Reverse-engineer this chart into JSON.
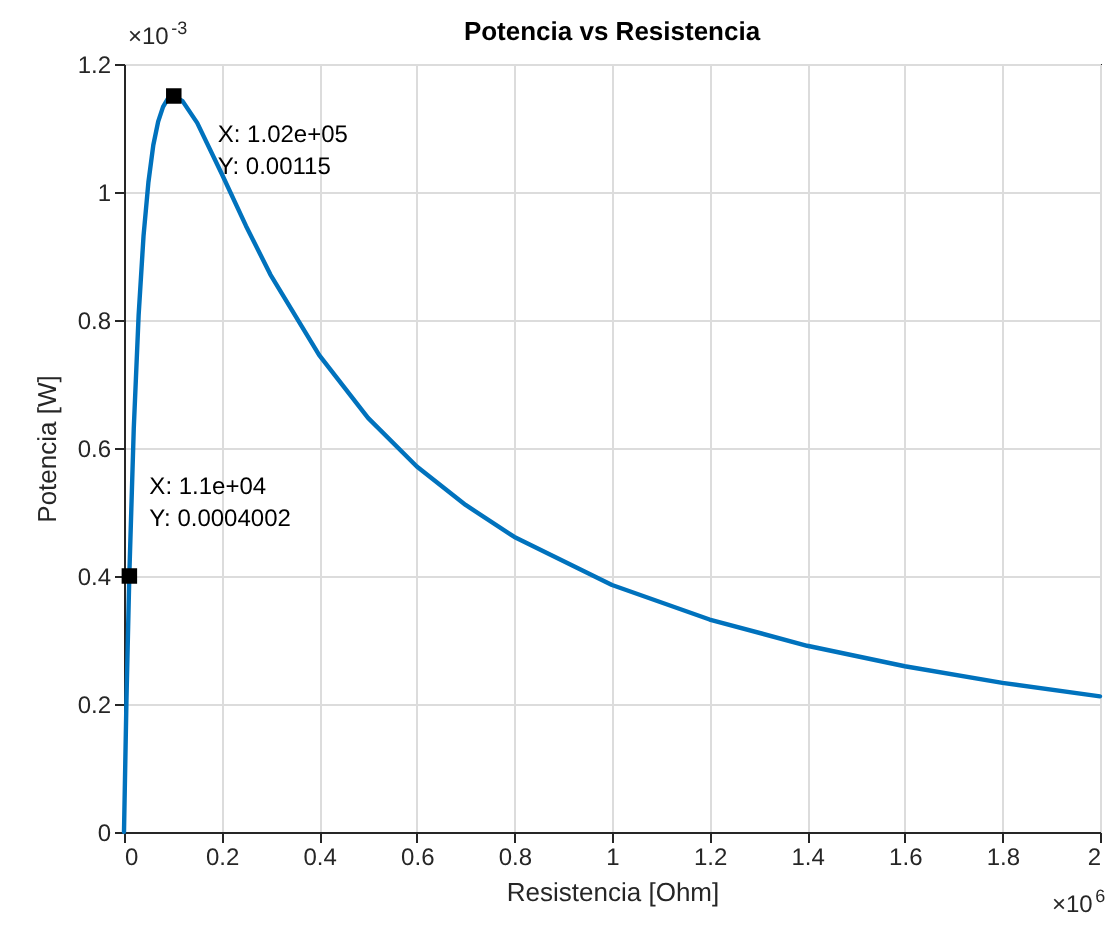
{
  "chart_data": {
    "type": "line",
    "title": "Potencia vs Resistencia",
    "xlabel": "Resistencia [Ohm]",
    "ylabel": "Potencia [W]",
    "xlim": [
      0,
      2
    ],
    "xticks": [
      0,
      0.2,
      0.4,
      0.6,
      0.8,
      1,
      1.2,
      1.4,
      1.6,
      1.8,
      2
    ],
    "ylim": [
      0,
      1.2
    ],
    "yticks": [
      0,
      0.2,
      0.4,
      0.6,
      0.8,
      1,
      1.2
    ],
    "grid": true,
    "line_style": "solid",
    "marker": "none",
    "series": [
      {
        "color": "#0072bd",
        "x": [
          0,
          0.005,
          0.011,
          0.02,
          0.03,
          0.04,
          0.05,
          0.06,
          0.07,
          0.08,
          0.09,
          0.102,
          0.12,
          0.15,
          0.2,
          0.25,
          0.3,
          0.4,
          0.5,
          0.6,
          0.7,
          0.8,
          1.0,
          1.2,
          1.4,
          1.6,
          1.8,
          2.0
        ],
        "values": [
          0,
          0.205,
          0.404,
          0.63,
          0.808,
          0.931,
          1.015,
          1.073,
          1.11,
          1.133,
          1.146,
          1.15,
          1.142,
          1.108,
          1.029,
          0.947,
          0.871,
          0.745,
          0.647,
          0.571,
          0.511,
          0.461,
          0.386,
          0.332,
          0.291,
          0.259,
          0.233,
          0.212
        ]
      },
      {
        "type": "scatter",
        "marker": "square",
        "color": "#000000",
        "x": [
          0.011,
          0.102
        ],
        "values": [
          0.4,
          1.15
        ]
      }
    ],
    "annotations": [
      {
        "text": "X: 1.02e+05\nY: 0.00115",
        "x": 0.102,
        "y": 1.15
      },
      {
        "text": "X: 1.1e+04\nY: 0.0004002",
        "x": 0.011,
        "y": 0.4002
      },
      "×10$^{-3}$",
      "×10$^{6}$"
    ]
  }
}
